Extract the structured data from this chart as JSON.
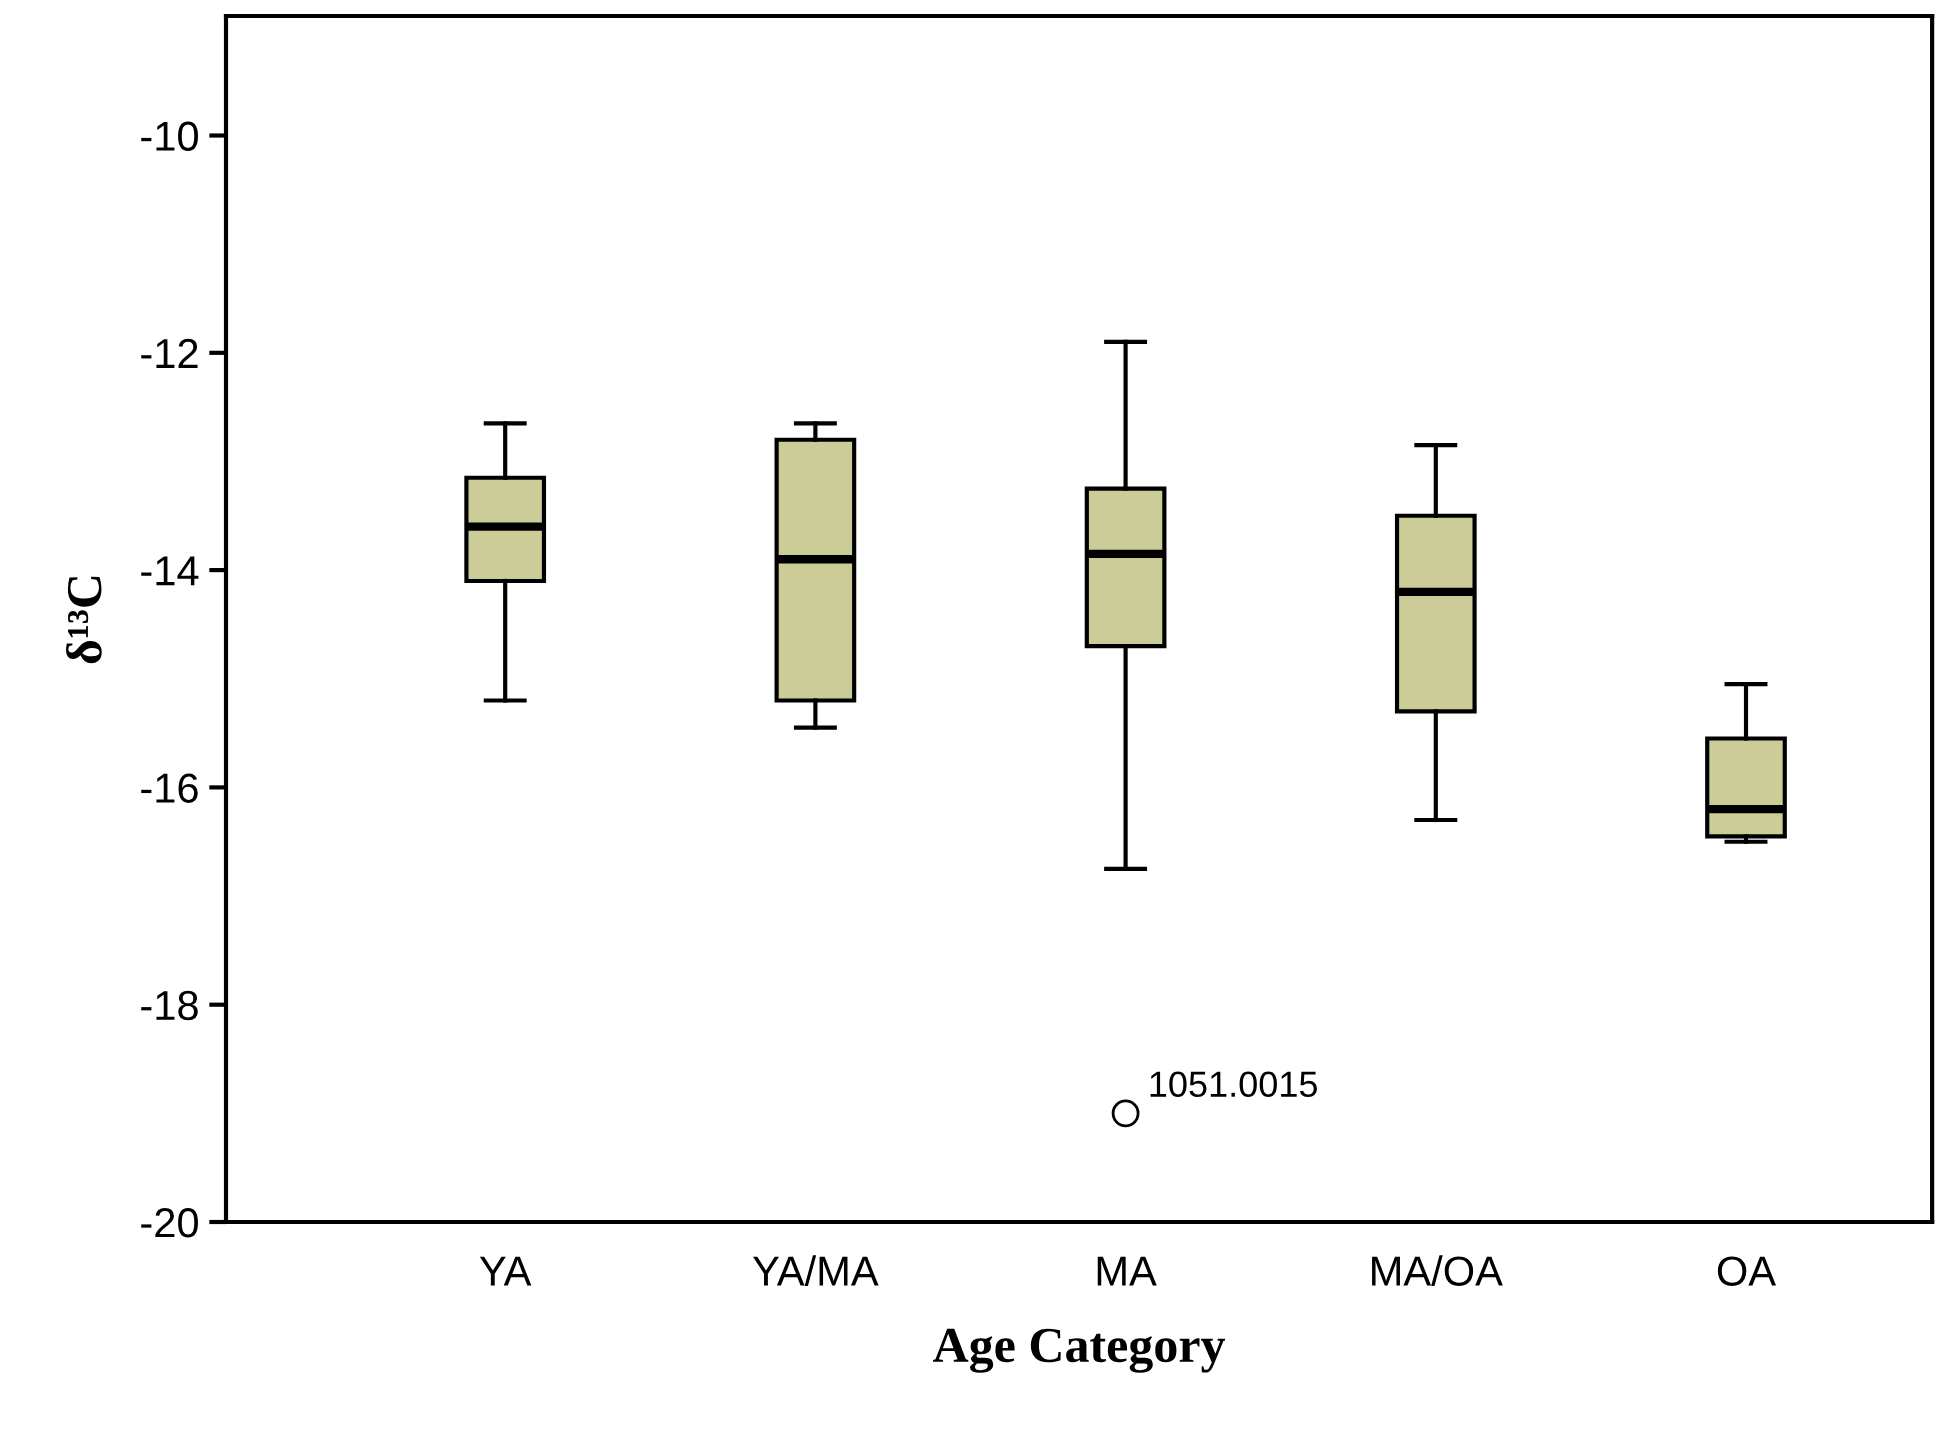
{
  "chart_data": {
    "type": "box",
    "xlabel": "Age Category",
    "ylabel": "δ¹³C",
    "categories": [
      "YA",
      "YA/MA",
      "MA",
      "MA/OA",
      "OA"
    ],
    "boxes": [
      {
        "low": -15.2,
        "q1": -14.1,
        "median": -13.6,
        "q3": -13.15,
        "high": -12.65
      },
      {
        "low": -15.45,
        "q1": -15.2,
        "median": -13.9,
        "q3": -12.8,
        "high": -12.65
      },
      {
        "low": -16.75,
        "q1": -14.7,
        "median": -13.85,
        "q3": -13.25,
        "high": -11.9,
        "outliers": [
          -19.0
        ]
      },
      {
        "low": -16.3,
        "q1": -15.3,
        "median": -14.2,
        "q3": -13.5,
        "high": -12.85
      },
      {
        "low": -16.5,
        "q1": -16.45,
        "median": -16.2,
        "q3": -15.55,
        "high": -15.05
      }
    ],
    "color": "#cccc99",
    "ylim": [
      -20,
      -8.9
    ],
    "yticks": [
      -20,
      -18,
      -16,
      -14,
      -12,
      -10
    ],
    "grid": false,
    "annotations": [
      "1051.0015"
    ]
  }
}
